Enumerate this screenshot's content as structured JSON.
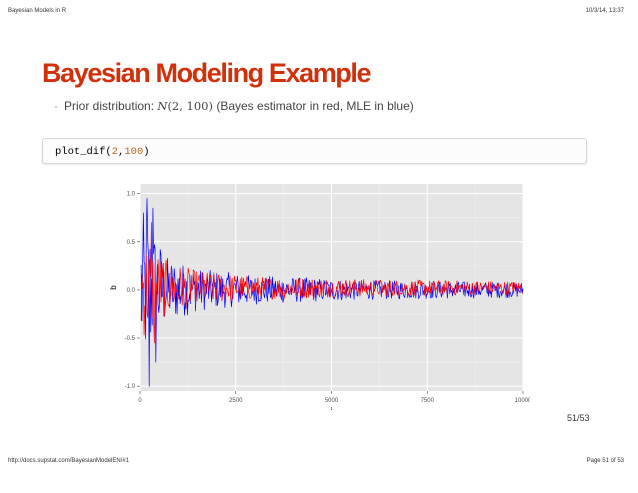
{
  "header": {
    "left": "Bayesian Models in R",
    "right": "10/3/14, 13:37"
  },
  "footer": {
    "left": "http://docs.supstat.com/BayesianModelEN/#1",
    "right": "Page 51 of 53"
  },
  "slide": {
    "title": "Bayesian Modeling Example",
    "bullet_prefix": "Prior distribution: ",
    "bullet_math_fn": "N",
    "bullet_math_args": "(2, 100)",
    "bullet_suffix": " (Bayes estimator in red, MLE in blue)",
    "code_fn": "plot_dif(",
    "code_arg1": "2",
    "code_comma": ",",
    "code_arg2": "100",
    "code_close": ")",
    "page_number": "51/53"
  },
  "colors": {
    "title": "#d0310a",
    "panel_bg": "#e5e5e5",
    "mle_series": "#0000ff",
    "bayes_series": "#ff0000"
  },
  "chart_data": {
    "type": "line",
    "xlabel": "i",
    "ylabel": "b",
    "xlim": [
      0,
      10000
    ],
    "ylim": [
      -1.05,
      1.1
    ],
    "x_ticks": [
      0,
      2500,
      5000,
      7500,
      10000
    ],
    "x_tick_labels": [
      "0",
      "2500",
      "5000",
      "7500",
      "10000"
    ],
    "y_ticks": [
      -1.0,
      -0.5,
      0.0,
      0.5,
      1.0
    ],
    "y_tick_labels": [
      "-1.0",
      "-0.5",
      "0.0",
      "0.5",
      "1.0"
    ],
    "grid": true,
    "legend": "none",
    "series": [
      {
        "color": "#0000ff",
        "center": 0.0,
        "envelope": [
          [
            0,
            0.85
          ],
          [
            300,
            0.7
          ],
          [
            700,
            0.35
          ],
          [
            1500,
            0.22
          ],
          [
            3000,
            0.15
          ],
          [
            6000,
            0.1
          ],
          [
            10000,
            0.08
          ]
        ]
      },
      {
        "color": "#ff0000",
        "center": 0.02,
        "envelope": [
          [
            0,
            0.55
          ],
          [
            300,
            0.45
          ],
          [
            700,
            0.28
          ],
          [
            1500,
            0.18
          ],
          [
            3000,
            0.12
          ],
          [
            6000,
            0.09
          ],
          [
            10000,
            0.07
          ]
        ]
      }
    ]
  }
}
